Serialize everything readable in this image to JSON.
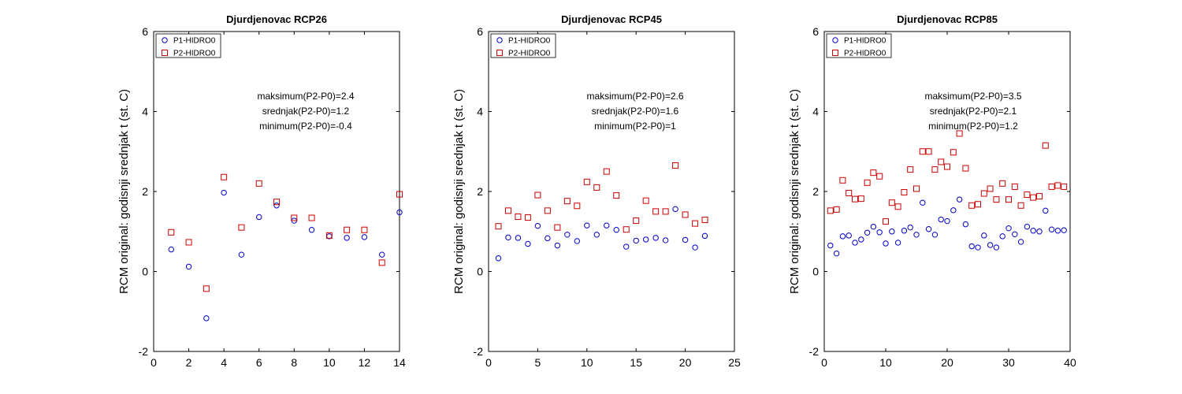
{
  "chart_data": [
    {
      "type": "scatter",
      "title": "Djurdjenovac RCP26",
      "ylabel": "RCM original: godisnji srednjak t (st. C)",
      "xlim": [
        0,
        14
      ],
      "ylim": [
        -2,
        6
      ],
      "xticks": [
        0,
        2,
        4,
        6,
        8,
        10,
        12,
        14
      ],
      "yticks": [
        -2,
        0,
        2,
        4,
        6
      ],
      "legend_placement": "top-left",
      "annotations": [
        "maksimum(P2-P0)=2.4",
        "srednjak(P2-P0)=1.2",
        "minimum(P2-P0)=-0.4"
      ],
      "series": [
        {
          "name": "P1-HIDRO0",
          "marker": "circle",
          "color": "#0000cc",
          "x": [
            1,
            2,
            3,
            4,
            5,
            6,
            7,
            8,
            9,
            10,
            11,
            12,
            13,
            14
          ],
          "y": [
            0.55,
            0.12,
            -1.17,
            1.97,
            0.42,
            1.36,
            1.65,
            1.27,
            1.04,
            0.88,
            0.84,
            0.86,
            0.42,
            1.48
          ]
        },
        {
          "name": "P2-HIDRO0",
          "marker": "square",
          "color": "#cc0000",
          "x": [
            1,
            2,
            3,
            4,
            5,
            6,
            7,
            8,
            9,
            10,
            11,
            12,
            13,
            14
          ],
          "y": [
            0.98,
            0.73,
            -0.43,
            2.36,
            1.1,
            2.2,
            1.74,
            1.34,
            1.34,
            0.9,
            1.04,
            1.04,
            0.22,
            1.93
          ]
        }
      ]
    },
    {
      "type": "scatter",
      "title": "Djurdjenovac RCP45",
      "ylabel": "RCM original: godisnji srednjak t (st. C)",
      "xlim": [
        0,
        25
      ],
      "ylim": [
        -2,
        6
      ],
      "xticks": [
        0,
        5,
        10,
        15,
        20,
        25
      ],
      "yticks": [
        -2,
        0,
        2,
        4,
        6
      ],
      "legend_placement": "top-left",
      "annotations": [
        "maksimum(P2-P0)=2.6",
        "srednjak(P2-P0)=1.6",
        "minimum(P2-P0)=1"
      ],
      "series": [
        {
          "name": "P1-HIDRO0",
          "marker": "circle",
          "color": "#0000cc",
          "x": [
            1,
            2,
            3,
            4,
            5,
            6,
            7,
            8,
            9,
            10,
            11,
            12,
            13,
            14,
            15,
            16,
            17,
            18,
            19,
            20,
            21,
            22
          ],
          "y": [
            0.33,
            0.85,
            0.84,
            0.69,
            1.14,
            0.83,
            0.65,
            0.92,
            0.76,
            1.15,
            0.92,
            1.15,
            1.04,
            0.62,
            0.77,
            0.8,
            0.84,
            0.78,
            1.56,
            0.79,
            0.6,
            0.89
          ]
        },
        {
          "name": "P2-HIDRO0",
          "marker": "square",
          "color": "#cc0000",
          "x": [
            1,
            2,
            3,
            4,
            5,
            6,
            7,
            8,
            9,
            10,
            11,
            12,
            13,
            14,
            15,
            16,
            17,
            18,
            19,
            20,
            21,
            22
          ],
          "y": [
            1.13,
            1.52,
            1.37,
            1.35,
            1.91,
            1.52,
            1.1,
            1.76,
            1.64,
            2.24,
            2.1,
            2.5,
            1.9,
            1.05,
            1.27,
            1.77,
            1.5,
            1.5,
            2.65,
            1.42,
            1.2,
            1.29
          ]
        }
      ]
    },
    {
      "type": "scatter",
      "title": "Djurdjenovac RCP85",
      "ylabel": "RCM original: godisnji srednjak t (st. C)",
      "xlim": [
        0,
        40
      ],
      "ylim": [
        -2,
        6
      ],
      "xticks": [
        0,
        10,
        20,
        30,
        40
      ],
      "yticks": [
        -2,
        0,
        2,
        4,
        6
      ],
      "legend_placement": "top-left",
      "annotations": [
        "maksimum(P2-P0)=3.5",
        "srednjak(P2-P0)=2.1",
        "minimum(P2-P0)=1.2"
      ],
      "series": [
        {
          "name": "P1-HIDRO0",
          "marker": "circle",
          "color": "#0000cc",
          "x": [
            1,
            2,
            3,
            4,
            5,
            6,
            7,
            8,
            9,
            10,
            11,
            12,
            13,
            14,
            15,
            16,
            17,
            18,
            19,
            20,
            21,
            22,
            23,
            24,
            25,
            26,
            27,
            28,
            29,
            30,
            31,
            32,
            33,
            34,
            35,
            36,
            37,
            38,
            39
          ],
          "y": [
            0.65,
            0.45,
            0.88,
            0.9,
            0.72,
            0.8,
            0.97,
            1.12,
            0.98,
            0.7,
            1.0,
            0.72,
            1.02,
            1.1,
            0.92,
            1.72,
            1.06,
            0.92,
            1.3,
            1.26,
            1.53,
            1.8,
            1.18,
            0.63,
            0.6,
            0.9,
            0.66,
            0.6,
            0.88,
            1.08,
            0.93,
            0.74,
            1.12,
            1.02,
            1.0,
            1.52,
            1.05,
            1.02,
            1.03
          ]
        },
        {
          "name": "P2-HIDRO0",
          "marker": "square",
          "color": "#cc0000",
          "x": [
            1,
            2,
            3,
            4,
            5,
            6,
            7,
            8,
            9,
            10,
            11,
            12,
            13,
            14,
            15,
            16,
            17,
            18,
            19,
            20,
            21,
            22,
            23,
            24,
            25,
            26,
            27,
            28,
            29,
            30,
            31,
            32,
            33,
            34,
            35,
            36,
            37,
            38,
            39
          ],
          "y": [
            1.52,
            1.55,
            2.28,
            1.96,
            1.81,
            1.82,
            2.22,
            2.47,
            2.38,
            1.25,
            1.72,
            1.62,
            1.98,
            2.55,
            2.07,
            3.0,
            3.0,
            2.55,
            2.74,
            2.62,
            2.98,
            3.45,
            2.58,
            1.65,
            1.68,
            1.95,
            2.07,
            1.8,
            2.2,
            1.8,
            2.12,
            1.65,
            1.92,
            1.85,
            1.88,
            3.15,
            2.12,
            2.15,
            2.12
          ]
        }
      ]
    }
  ]
}
